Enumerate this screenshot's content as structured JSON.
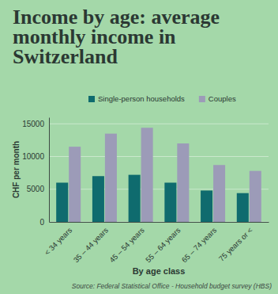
{
  "chart_data": {
    "type": "bar",
    "title": "Income by age: average monthly income in Switzerland",
    "y_label": "CHF per month",
    "x_label": "By age class",
    "source": "Source: Federal Statistical Office - Household budget survey (HBS)",
    "categories": [
      "< 34 years",
      "35 – 44 years",
      "45 – 54 years",
      "55 – 64 years",
      "65 – 74 years",
      "75 years or <"
    ],
    "series": [
      {
        "name": "Single-person households",
        "color": "#0f6b6e",
        "values": [
          6000,
          7000,
          7200,
          6000,
          4800,
          4400
        ]
      },
      {
        "name": "Couples",
        "color": "#9c9bb8",
        "values": [
          11500,
          13500,
          14400,
          12000,
          8700,
          7800
        ]
      }
    ],
    "ylim": [
      0,
      16000
    ],
    "yticks": [
      0,
      5000,
      10000,
      15000
    ],
    "grid": true,
    "legend": "top"
  }
}
